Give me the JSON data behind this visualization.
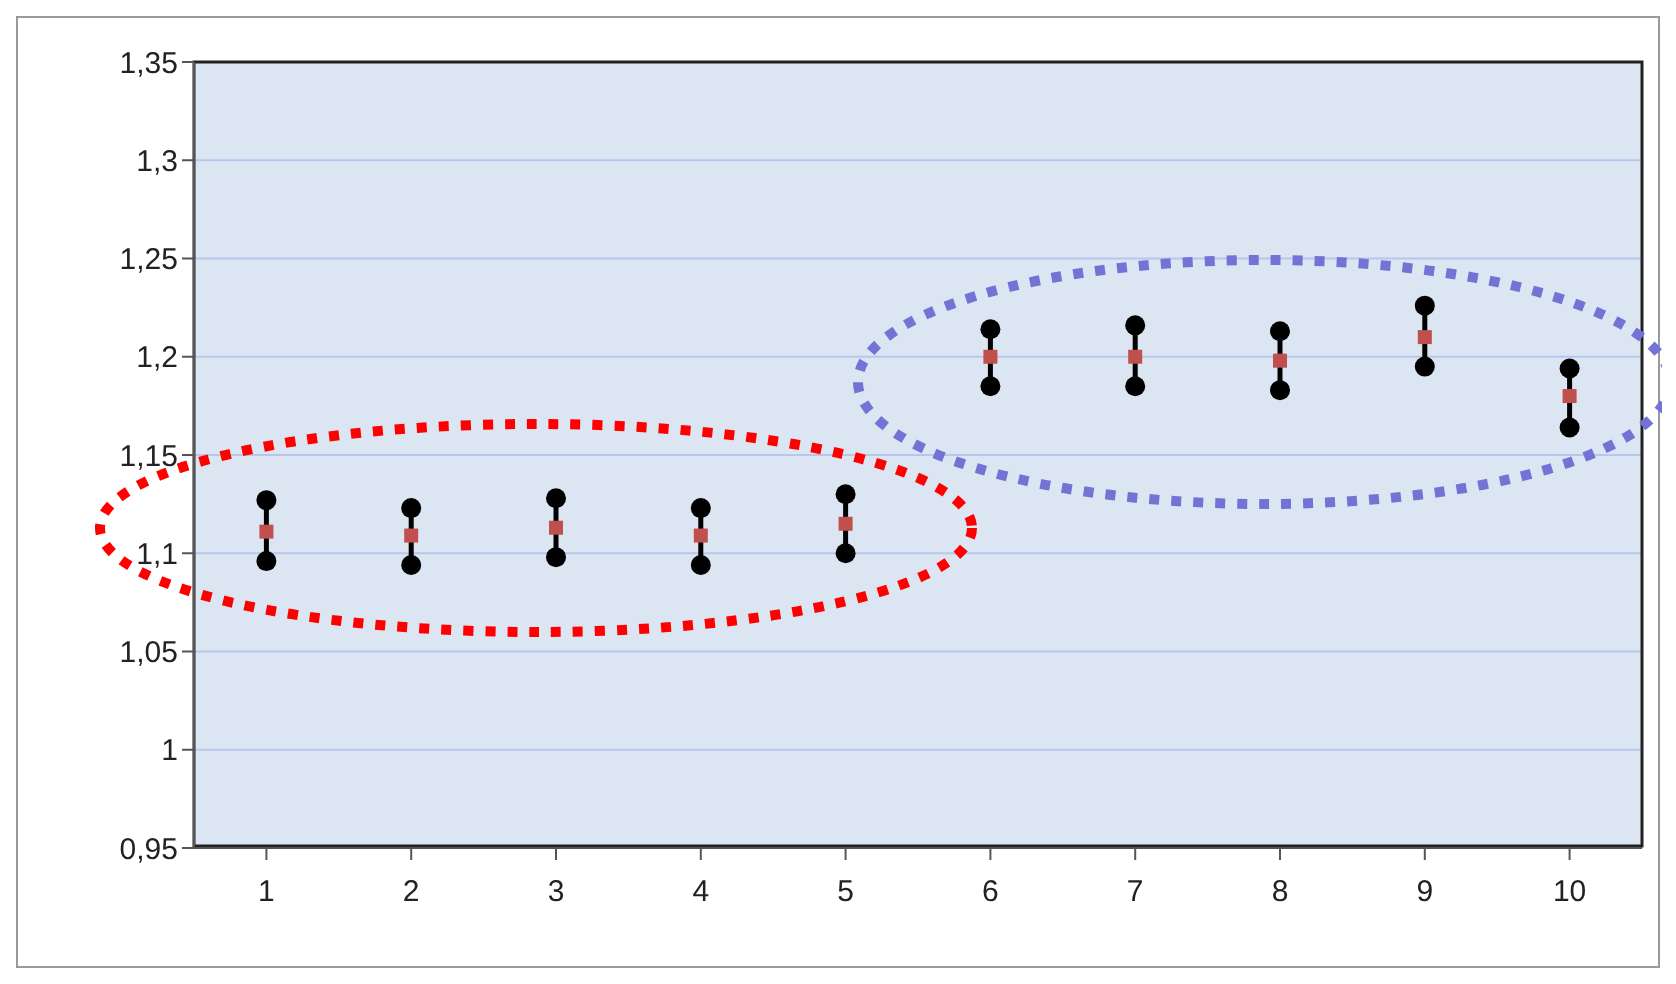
{
  "chart_data": {
    "type": "scatter",
    "categories": [
      "1",
      "2",
      "3",
      "4",
      "5",
      "6",
      "7",
      "8",
      "9",
      "10"
    ],
    "series": [
      {
        "color": "#000000",
        "marker": "circle",
        "values": [
          1.127,
          1.123,
          1.128,
          1.123,
          1.13,
          1.214,
          1.216,
          1.213,
          1.226,
          1.194
        ]
      },
      {
        "color": "#c0504d",
        "marker": "square",
        "values": [
          1.111,
          1.109,
          1.113,
          1.109,
          1.115,
          1.2,
          1.2,
          1.198,
          1.21,
          1.18
        ]
      },
      {
        "color": "#000000",
        "marker": "circle",
        "values": [
          1.096,
          1.094,
          1.098,
          1.094,
          1.1,
          1.185,
          1.185,
          1.183,
          1.195,
          1.164
        ]
      }
    ],
    "ylim": [
      0.95,
      1.35
    ],
    "yticks": [
      {
        "value": 0.95,
        "label": "0,95"
      },
      {
        "value": 1,
        "label": "1"
      },
      {
        "value": 1.05,
        "label": "1,05"
      },
      {
        "value": 1.1,
        "label": "1,1"
      },
      {
        "value": 1.15,
        "label": "1,15"
      },
      {
        "value": 1.2,
        "label": "1,2"
      },
      {
        "value": 1.25,
        "label": "1,25"
      },
      {
        "value": 1.3,
        "label": "1,3"
      },
      {
        "value": 1.35,
        "label": "1,35"
      }
    ],
    "grid": "y",
    "legend": false
  }
}
